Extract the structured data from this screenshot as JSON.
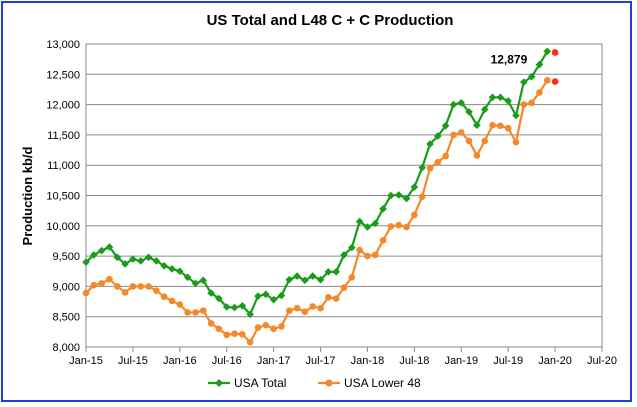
{
  "chart_data": {
    "type": "line",
    "title": "US Total and L48 C + C Production",
    "xlabel": "",
    "ylabel": "Production kb/d",
    "ylim": [
      8000,
      13000
    ],
    "y_ticks": [
      "8,000",
      "8,500",
      "9,000",
      "9,500",
      "10,000",
      "10,500",
      "11,000",
      "11,500",
      "12,000",
      "12,500",
      "13,000"
    ],
    "y_tick_values": [
      8000,
      8500,
      9000,
      9500,
      10000,
      10500,
      11000,
      11500,
      12000,
      12500,
      13000
    ],
    "x_ticks": [
      "Jan-15",
      "Jul-15",
      "Jan-16",
      "Jul-16",
      "Jan-17",
      "Jul-17",
      "Jan-18",
      "Jul-18",
      "Jan-19",
      "Jul-19",
      "Jan-20",
      "Jul-20"
    ],
    "x_start": "Jan-15",
    "x_months": 66,
    "grid": "horizontal",
    "legend_position": "bottom",
    "annotation": {
      "text": "12,879",
      "series": "USA Total",
      "month": "Sep-19"
    },
    "series": [
      {
        "name": "USA Total",
        "color": "#1a9c1a",
        "marker": "diamond",
        "values": [
          9400,
          9520,
          9590,
          9650,
          9480,
          9370,
          9450,
          9420,
          9480,
          9420,
          9340,
          9290,
          9250,
          9150,
          9050,
          9100,
          8890,
          8800,
          8660,
          8650,
          8680,
          8540,
          8840,
          8870,
          8780,
          8850,
          9110,
          9170,
          9100,
          9170,
          9110,
          9240,
          9240,
          9520,
          9640,
          10070,
          9980,
          10040,
          10280,
          10500,
          10510,
          10450,
          10640,
          10960,
          11350,
          11480,
          11650,
          12000,
          12030,
          11880,
          11660,
          11920,
          12120,
          12120,
          12060,
          11820,
          12370,
          12460,
          12660,
          12879
        ]
      },
      {
        "name": "USA Lower 48",
        "color": "#f5892a",
        "marker": "circle",
        "values": [
          8890,
          9020,
          9050,
          9120,
          9000,
          8900,
          9000,
          9000,
          9000,
          8930,
          8830,
          8760,
          8700,
          8570,
          8570,
          8600,
          8390,
          8300,
          8200,
          8220,
          8210,
          8080,
          8320,
          8360,
          8300,
          8340,
          8600,
          8640,
          8580,
          8670,
          8640,
          8820,
          8800,
          8980,
          9150,
          9600,
          9500,
          9520,
          9760,
          9990,
          10010,
          9980,
          10180,
          10480,
          10950,
          11050,
          11150,
          11500,
          11540,
          11400,
          11160,
          11400,
          11660,
          11650,
          11610,
          11380,
          12000,
          12030,
          12200,
          12400
        ]
      },
      {
        "name": "",
        "color": "#ff2a1a",
        "marker": "circle",
        "points": [
          {
            "month": 60,
            "value": 12860
          },
          {
            "month": 60,
            "value": 12380
          }
        ]
      }
    ]
  }
}
